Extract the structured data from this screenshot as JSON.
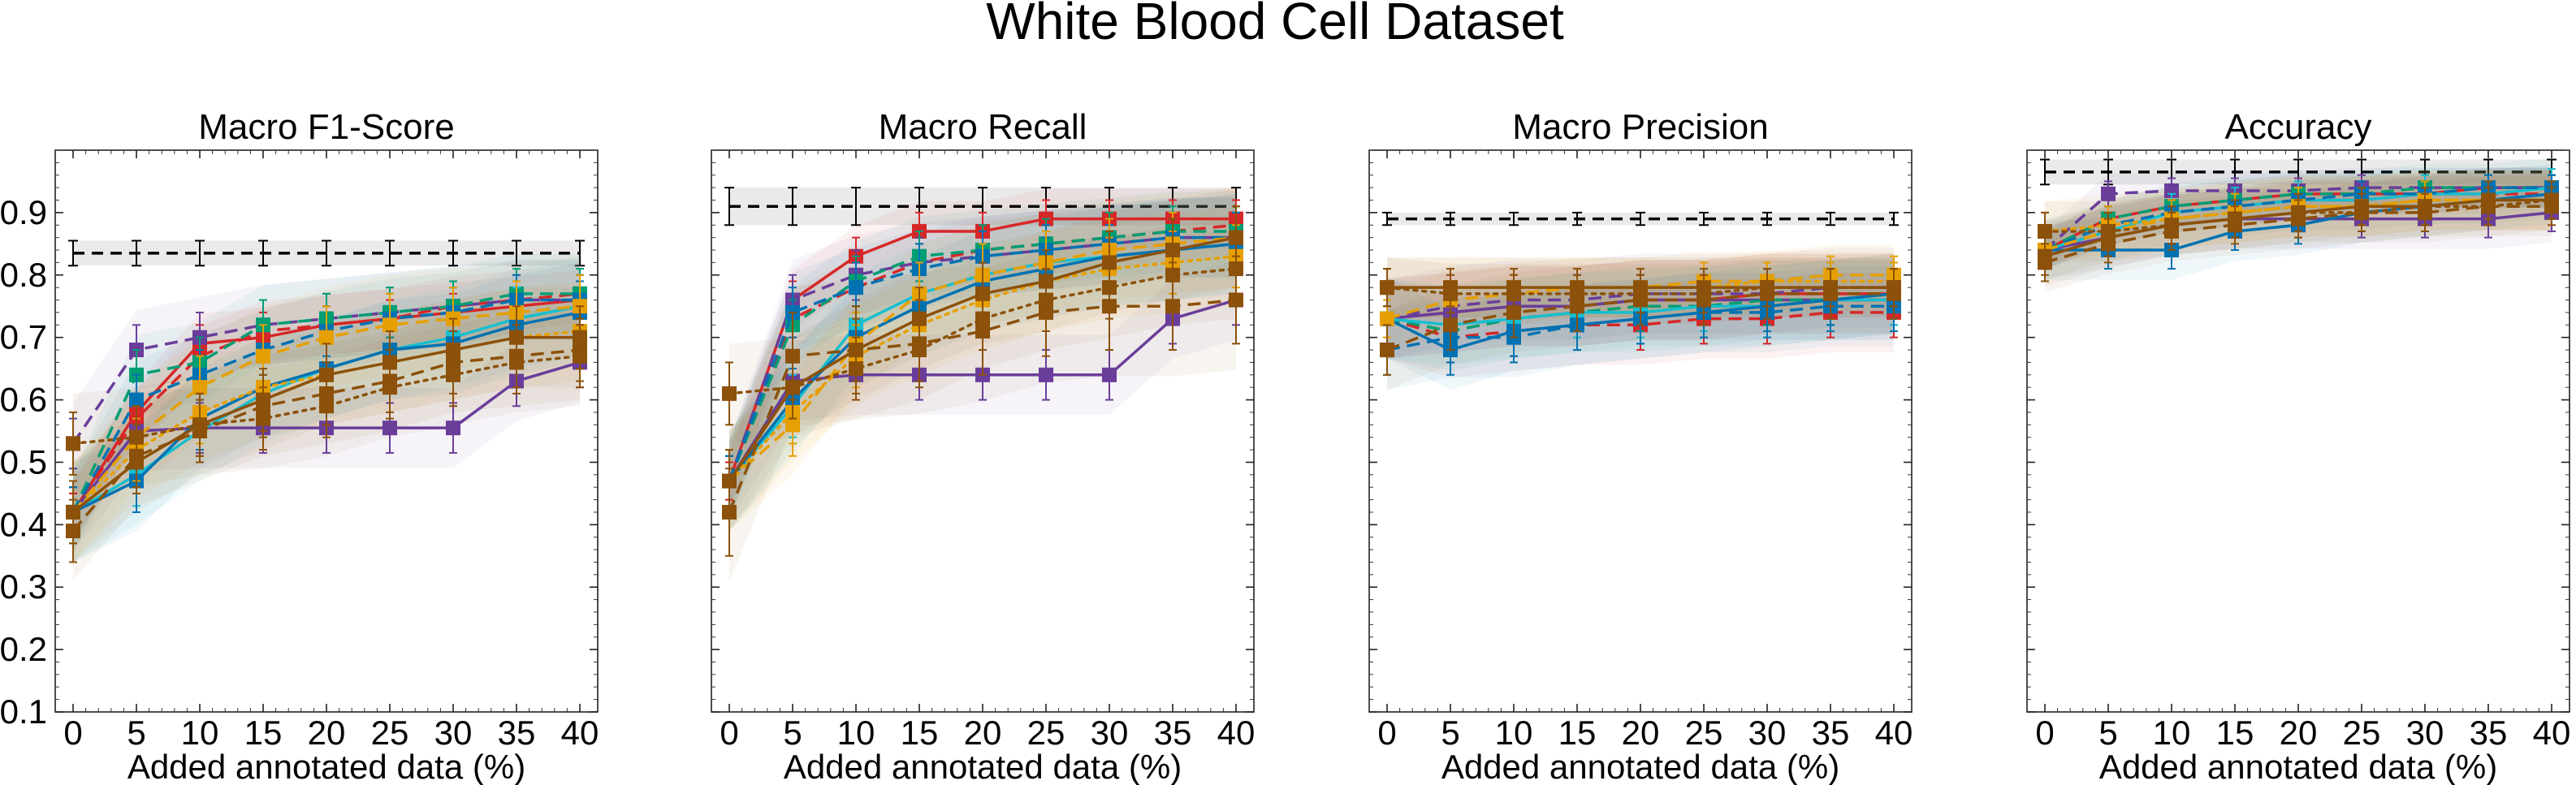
{
  "figure": {
    "title": "White Blood Cell Dataset"
  },
  "chart_data": [
    {
      "type": "line",
      "title": "Macro F1-Score",
      "xlabel": "Added annotated data (%)",
      "ylabel": "",
      "x": [
        0,
        5,
        10,
        15,
        20,
        25,
        30,
        35,
        40
      ],
      "x_ticks": [
        "0",
        "5",
        "10",
        "15",
        "20",
        "25",
        "30",
        "35",
        "40"
      ],
      "y_ticks": [
        "0.1",
        "0.2",
        "0.3",
        "0.4",
        "0.5",
        "0.6",
        "0.7",
        "0.8",
        "0.9"
      ],
      "ylim": [
        0.1,
        1.0
      ],
      "show_y_ticklabels": true,
      "baseline": {
        "value": 0.835,
        "err": 0.02
      },
      "series": [
        {
          "color": "#d62728",
          "dash": "solid",
          "values": [
            0.42,
            0.58,
            0.69,
            0.7,
            0.72,
            0.73,
            0.74,
            0.75,
            0.76
          ],
          "err": 0.03
        },
        {
          "color": "#d62728",
          "dash": "dashed",
          "values": [
            0.42,
            0.57,
            0.67,
            0.71,
            0.72,
            0.73,
            0.75,
            0.76,
            0.77
          ],
          "err": 0.03
        },
        {
          "color": "#6a3d9a",
          "dash": "solid",
          "values": [
            0.42,
            0.55,
            0.555,
            0.555,
            0.555,
            0.555,
            0.555,
            0.63,
            0.66
          ],
          "err": 0.04
        },
        {
          "color": "#6a3d9a",
          "dash": "dashed",
          "values": [
            0.53,
            0.68,
            0.7,
            0.72,
            0.73,
            0.74,
            0.75,
            0.76,
            0.76
          ],
          "err": 0.04
        },
        {
          "color": "#009e73",
          "dash": "dashed",
          "values": [
            0.42,
            0.64,
            0.66,
            0.72,
            0.73,
            0.74,
            0.75,
            0.77,
            0.77
          ],
          "err": 0.04
        },
        {
          "color": "#17becf",
          "dash": "solid",
          "values": [
            0.42,
            0.48,
            0.55,
            0.61,
            0.65,
            0.68,
            0.7,
            0.73,
            0.75
          ],
          "err": 0.05
        },
        {
          "color": "#0072b2",
          "dash": "solid",
          "values": [
            0.42,
            0.47,
            0.57,
            0.62,
            0.65,
            0.68,
            0.69,
            0.72,
            0.74
          ],
          "err": 0.05
        },
        {
          "color": "#0072b2",
          "dash": "dashed",
          "values": [
            0.42,
            0.6,
            0.64,
            0.68,
            0.71,
            0.73,
            0.74,
            0.76,
            0.76
          ],
          "err": 0.04
        },
        {
          "color": "#e69f00",
          "dash": "dashed",
          "values": [
            0.42,
            0.54,
            0.62,
            0.67,
            0.7,
            0.72,
            0.73,
            0.74,
            0.75
          ],
          "err": 0.05
        },
        {
          "color": "#e69f00",
          "dash": "dotted",
          "values": [
            0.42,
            0.52,
            0.58,
            0.62,
            0.64,
            0.66,
            0.68,
            0.7,
            0.71
          ],
          "err": 0.05
        },
        {
          "color": "#8c510a",
          "dash": "solid",
          "values": [
            0.42,
            0.5,
            0.56,
            0.6,
            0.64,
            0.66,
            0.68,
            0.7,
            0.7
          ],
          "err": 0.05
        },
        {
          "color": "#8c510a",
          "dash": "dashed",
          "values": [
            0.39,
            0.51,
            0.55,
            0.59,
            0.61,
            0.63,
            0.66,
            0.67,
            0.68
          ],
          "err": 0.05
        },
        {
          "color": "#8c510a",
          "dash": "dotted",
          "values": [
            0.53,
            0.54,
            0.56,
            0.57,
            0.59,
            0.62,
            0.64,
            0.66,
            0.67
          ],
          "err": 0.05
        }
      ]
    },
    {
      "type": "line",
      "title": "Macro Recall",
      "xlabel": "Added annotated data (%)",
      "ylabel": "",
      "x": [
        0,
        5,
        10,
        15,
        20,
        25,
        30,
        35,
        40
      ],
      "x_ticks": [
        "0",
        "5",
        "10",
        "15",
        "20",
        "25",
        "30",
        "35",
        "40"
      ],
      "y_ticks": [
        "0.1",
        "0.2",
        "0.3",
        "0.4",
        "0.5",
        "0.6",
        "0.7",
        "0.8",
        "0.9"
      ],
      "ylim": [
        0.1,
        1.0
      ],
      "show_y_ticklabels": false,
      "baseline": {
        "value": 0.91,
        "err": 0.03
      },
      "series": [
        {
          "color": "#d62728",
          "dash": "solid",
          "values": [
            0.47,
            0.76,
            0.83,
            0.87,
            0.87,
            0.89,
            0.89,
            0.89,
            0.89
          ],
          "err": 0.03
        },
        {
          "color": "#d62728",
          "dash": "dashed",
          "values": [
            0.47,
            0.73,
            0.78,
            0.82,
            0.84,
            0.85,
            0.86,
            0.87,
            0.88
          ],
          "err": 0.03
        },
        {
          "color": "#6a3d9a",
          "dash": "solid",
          "values": [
            0.47,
            0.63,
            0.64,
            0.64,
            0.64,
            0.64,
            0.64,
            0.73,
            0.76
          ],
          "err": 0.04
        },
        {
          "color": "#6a3d9a",
          "dash": "dashed",
          "values": [
            0.47,
            0.76,
            0.8,
            0.82,
            0.83,
            0.84,
            0.85,
            0.86,
            0.86
          ],
          "err": 0.04
        },
        {
          "color": "#009e73",
          "dash": "dashed",
          "values": [
            0.47,
            0.72,
            0.79,
            0.83,
            0.84,
            0.85,
            0.86,
            0.87,
            0.87
          ],
          "err": 0.04
        },
        {
          "color": "#17becf",
          "dash": "solid",
          "values": [
            0.47,
            0.59,
            0.72,
            0.77,
            0.8,
            0.82,
            0.83,
            0.84,
            0.85
          ],
          "err": 0.05
        },
        {
          "color": "#0072b2",
          "dash": "solid",
          "values": [
            0.47,
            0.6,
            0.7,
            0.75,
            0.79,
            0.81,
            0.83,
            0.84,
            0.85
          ],
          "err": 0.05
        },
        {
          "color": "#0072b2",
          "dash": "dashed",
          "values": [
            0.47,
            0.74,
            0.78,
            0.81,
            0.83,
            0.84,
            0.85,
            0.86,
            0.86
          ],
          "err": 0.04
        },
        {
          "color": "#e69f00",
          "dash": "dashed",
          "values": [
            0.47,
            0.56,
            0.69,
            0.77,
            0.8,
            0.82,
            0.84,
            0.85,
            0.86
          ],
          "err": 0.05
        },
        {
          "color": "#e69f00",
          "dash": "dotted",
          "values": [
            0.47,
            0.58,
            0.67,
            0.72,
            0.76,
            0.79,
            0.81,
            0.82,
            0.83
          ],
          "err": 0.05
        },
        {
          "color": "#8c510a",
          "dash": "solid",
          "values": [
            0.47,
            0.62,
            0.68,
            0.73,
            0.77,
            0.79,
            0.82,
            0.84,
            0.86
          ],
          "err": 0.05
        },
        {
          "color": "#8c510a",
          "dash": "dashed",
          "values": [
            0.42,
            0.67,
            0.68,
            0.69,
            0.71,
            0.74,
            0.75,
            0.75,
            0.76
          ],
          "err": 0.07
        },
        {
          "color": "#8c510a",
          "dash": "dotted",
          "values": [
            0.61,
            0.62,
            0.65,
            0.68,
            0.73,
            0.76,
            0.78,
            0.8,
            0.81
          ],
          "err": 0.05
        }
      ]
    },
    {
      "type": "line",
      "title": "Macro Precision",
      "xlabel": "Added annotated data (%)",
      "ylabel": "",
      "x": [
        0,
        5,
        10,
        15,
        20,
        25,
        30,
        35,
        40
      ],
      "x_ticks": [
        "0",
        "5",
        "10",
        "15",
        "20",
        "25",
        "30",
        "35",
        "40"
      ],
      "y_ticks": [
        "0.1",
        "0.2",
        "0.3",
        "0.4",
        "0.5",
        "0.6",
        "0.7",
        "0.8",
        "0.9"
      ],
      "ylim": [
        0.1,
        1.0
      ],
      "show_y_ticklabels": false,
      "baseline": {
        "value": 0.89,
        "err": 0.01
      },
      "series": [
        {
          "color": "#d62728",
          "dash": "solid",
          "values": [
            0.73,
            0.74,
            0.75,
            0.75,
            0.76,
            0.76,
            0.77,
            0.77,
            0.77
          ],
          "err": 0.04
        },
        {
          "color": "#d62728",
          "dash": "dashed",
          "values": [
            0.73,
            0.7,
            0.71,
            0.72,
            0.72,
            0.73,
            0.73,
            0.74,
            0.74
          ],
          "err": 0.04
        },
        {
          "color": "#6a3d9a",
          "dash": "solid",
          "values": [
            0.73,
            0.74,
            0.75,
            0.75,
            0.76,
            0.76,
            0.76,
            0.76,
            0.76
          ],
          "err": 0.04
        },
        {
          "color": "#6a3d9a",
          "dash": "dashed",
          "values": [
            0.73,
            0.75,
            0.76,
            0.76,
            0.77,
            0.77,
            0.77,
            0.78,
            0.78
          ],
          "err": 0.04
        },
        {
          "color": "#009e73",
          "dash": "dashed",
          "values": [
            0.73,
            0.71,
            0.73,
            0.74,
            0.75,
            0.75,
            0.76,
            0.76,
            0.77
          ],
          "err": 0.04
        },
        {
          "color": "#17becf",
          "dash": "solid",
          "values": [
            0.73,
            0.72,
            0.73,
            0.74,
            0.74,
            0.75,
            0.75,
            0.76,
            0.76
          ],
          "err": 0.04
        },
        {
          "color": "#0072b2",
          "dash": "solid",
          "values": [
            0.73,
            0.68,
            0.71,
            0.72,
            0.73,
            0.74,
            0.75,
            0.76,
            0.77
          ],
          "err": 0.04
        },
        {
          "color": "#0072b2",
          "dash": "dashed",
          "values": [
            0.68,
            0.7,
            0.7,
            0.72,
            0.73,
            0.74,
            0.74,
            0.75,
            0.75
          ],
          "err": 0.04
        },
        {
          "color": "#e69f00",
          "dash": "dashed",
          "values": [
            0.73,
            0.76,
            0.77,
            0.78,
            0.78,
            0.79,
            0.79,
            0.8,
            0.8
          ],
          "err": 0.03
        },
        {
          "color": "#e69f00",
          "dash": "dotted",
          "values": [
            0.78,
            0.78,
            0.78,
            0.78,
            0.78,
            0.78,
            0.79,
            0.79,
            0.79
          ],
          "err": 0.03
        },
        {
          "color": "#8c510a",
          "dash": "solid",
          "values": [
            0.78,
            0.78,
            0.78,
            0.78,
            0.78,
            0.78,
            0.78,
            0.78,
            0.78
          ],
          "err": 0.03
        },
        {
          "color": "#8c510a",
          "dash": "dashed",
          "values": [
            0.68,
            0.72,
            0.74,
            0.75,
            0.76,
            0.76,
            0.77,
            0.77,
            0.77
          ],
          "err": 0.04
        },
        {
          "color": "#8c510a",
          "dash": "dotted",
          "values": [
            0.78,
            0.77,
            0.77,
            0.77,
            0.77,
            0.77,
            0.78,
            0.78,
            0.78
          ],
          "err": 0.03
        }
      ]
    },
    {
      "type": "line",
      "title": "Accuracy",
      "xlabel": "Added annotated data (%)",
      "ylabel": "",
      "x": [
        0,
        5,
        10,
        15,
        20,
        25,
        30,
        35,
        40
      ],
      "x_ticks": [
        "0",
        "5",
        "10",
        "15",
        "20",
        "25",
        "30",
        "35",
        "40"
      ],
      "y_ticks": [
        "0.1",
        "0.2",
        "0.3",
        "0.4",
        "0.5",
        "0.6",
        "0.7",
        "0.8",
        "0.9"
      ],
      "ylim": [
        0.1,
        1.0
      ],
      "show_y_ticklabels": false,
      "baseline": {
        "value": 0.965,
        "err": 0.02
      },
      "series": [
        {
          "color": "#d62728",
          "dash": "solid",
          "values": [
            0.84,
            0.89,
            0.91,
            0.92,
            0.93,
            0.93,
            0.93,
            0.94,
            0.94
          ],
          "err": 0.02
        },
        {
          "color": "#d62728",
          "dash": "dashed",
          "values": [
            0.84,
            0.88,
            0.9,
            0.91,
            0.92,
            0.92,
            0.93,
            0.93,
            0.93
          ],
          "err": 0.02
        },
        {
          "color": "#6a3d9a",
          "dash": "solid",
          "values": [
            0.84,
            0.86,
            0.88,
            0.89,
            0.89,
            0.89,
            0.89,
            0.89,
            0.9
          ],
          "err": 0.03
        },
        {
          "color": "#6a3d9a",
          "dash": "dashed",
          "values": [
            0.84,
            0.93,
            0.935,
            0.935,
            0.935,
            0.94,
            0.94,
            0.94,
            0.94
          ],
          "err": 0.02
        },
        {
          "color": "#009e73",
          "dash": "dashed",
          "values": [
            0.84,
            0.89,
            0.91,
            0.92,
            0.93,
            0.93,
            0.94,
            0.94,
            0.94
          ],
          "err": 0.02
        },
        {
          "color": "#17becf",
          "dash": "solid",
          "values": [
            0.84,
            0.87,
            0.9,
            0.91,
            0.92,
            0.92,
            0.93,
            0.93,
            0.94
          ],
          "err": 0.03
        },
        {
          "color": "#0072b2",
          "dash": "solid",
          "values": [
            0.84,
            0.84,
            0.84,
            0.87,
            0.88,
            0.9,
            0.91,
            0.92,
            0.93
          ],
          "err": 0.03
        },
        {
          "color": "#0072b2",
          "dash": "dashed",
          "values": [
            0.84,
            0.88,
            0.9,
            0.91,
            0.92,
            0.93,
            0.93,
            0.94,
            0.94
          ],
          "err": 0.02
        },
        {
          "color": "#e69f00",
          "dash": "dashed",
          "values": [
            0.84,
            0.87,
            0.89,
            0.9,
            0.91,
            0.91,
            0.92,
            0.92,
            0.92
          ],
          "err": 0.03
        },
        {
          "color": "#e69f00",
          "dash": "dotted",
          "values": [
            0.87,
            0.88,
            0.89,
            0.9,
            0.91,
            0.91,
            0.92,
            0.92,
            0.92
          ],
          "err": 0.03
        },
        {
          "color": "#8c510a",
          "dash": "solid",
          "values": [
            0.83,
            0.86,
            0.88,
            0.89,
            0.9,
            0.91,
            0.91,
            0.92,
            0.92
          ],
          "err": 0.03
        },
        {
          "color": "#8c510a",
          "dash": "dashed",
          "values": [
            0.82,
            0.85,
            0.87,
            0.88,
            0.89,
            0.9,
            0.9,
            0.91,
            0.91
          ],
          "err": 0.03
        },
        {
          "color": "#8c510a",
          "dash": "dotted",
          "values": [
            0.87,
            0.87,
            0.88,
            0.89,
            0.9,
            0.9,
            0.91,
            0.91,
            0.92
          ],
          "err": 0.03
        }
      ]
    }
  ]
}
